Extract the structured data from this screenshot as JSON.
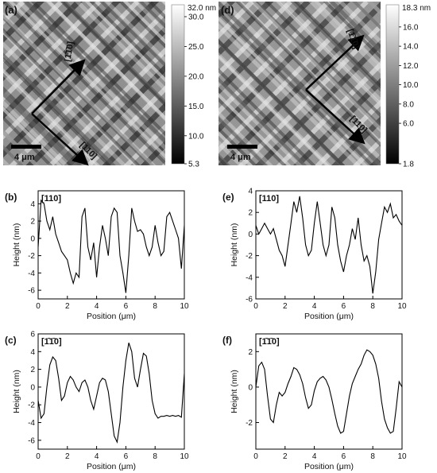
{
  "figure": {
    "panels": {
      "a": {
        "label": "(a)",
        "dir_top": "[1̄1̄0]",
        "dir_bottom": "[110]",
        "scalebar": "4 μm"
      },
      "d": {
        "label": "(d)",
        "dir_top": "[1̄1̄0]",
        "dir_bottom": "[110]",
        "scalebar": "4 μm"
      }
    },
    "colorbars": [
      {
        "max_label": "32.0 nm",
        "ticks": [
          "30.0",
          "25.0",
          "20.0",
          "15.0",
          "10.0",
          "5.3"
        ],
        "tick_values": [
          30.0,
          25.0,
          20.0,
          15.0,
          10.0,
          5.3
        ],
        "min": 5.3,
        "max": 32.0
      },
      {
        "max_label": "18.3 nm",
        "ticks": [
          "16.0",
          "14.0",
          "12.0",
          "10.0",
          "8.0",
          "6.0",
          "1.8"
        ],
        "tick_values": [
          16.0,
          14.0,
          12.0,
          10.0,
          8.0,
          6.0,
          1.8
        ],
        "min": 1.8,
        "max": 18.3
      }
    ]
  },
  "chart_data": [
    {
      "id": "b",
      "type": "line",
      "panel_label": "(b)",
      "direction": "[110]",
      "xlabel": "Position (μm)",
      "ylabel": "Height (nm)",
      "xlim": [
        0,
        10
      ],
      "ylim": [
        -7,
        5.5
      ],
      "xticks": [
        0,
        2,
        4,
        6,
        8,
        10
      ],
      "yticks": [
        -6,
        -4,
        -2,
        0,
        2,
        4
      ],
      "x": [
        0,
        0.2,
        0.4,
        0.6,
        0.8,
        1.0,
        1.2,
        1.4,
        1.6,
        1.8,
        2.0,
        2.2,
        2.4,
        2.6,
        2.8,
        3.0,
        3.2,
        3.4,
        3.6,
        3.8,
        4.0,
        4.2,
        4.4,
        4.6,
        4.8,
        5.0,
        5.2,
        5.4,
        5.6,
        5.8,
        6.0,
        6.2,
        6.4,
        6.6,
        6.8,
        7.0,
        7.2,
        7.4,
        7.6,
        7.8,
        8.0,
        8.2,
        8.4,
        8.6,
        8.8,
        9.0,
        9.2,
        9.4,
        9.6,
        9.8,
        10.0
      ],
      "y": [
        -1.0,
        4.4,
        4.0,
        2.0,
        1.0,
        2.5,
        0.5,
        -0.5,
        -1.5,
        -2.0,
        -2.5,
        -4.0,
        -5.2,
        -4.0,
        -4.5,
        2.5,
        3.5,
        -1.0,
        -2.5,
        -0.5,
        -4.5,
        -1.0,
        1.5,
        0.0,
        -2.0,
        2.5,
        3.5,
        3.0,
        -2.0,
        -4.0,
        -6.3,
        -2.0,
        3.5,
        2.0,
        0.8,
        1.0,
        0.5,
        -1.0,
        -2.0,
        -1.0,
        1.5,
        -0.5,
        -2.0,
        -1.5,
        2.5,
        3.0,
        2.0,
        1.0,
        0.0,
        -3.5,
        1.5
      ]
    },
    {
      "id": "c",
      "type": "line",
      "panel_label": "(c)",
      "direction": "[1̄1̄0]",
      "xlabel": "Position (μm)",
      "ylabel": "Height (nm)",
      "xlim": [
        0,
        10
      ],
      "ylim": [
        -7,
        6
      ],
      "xticks": [
        0,
        2,
        4,
        6,
        8,
        10
      ],
      "yticks": [
        -6,
        -4,
        -2,
        0,
        2,
        4,
        6
      ],
      "x": [
        0,
        0.2,
        0.4,
        0.6,
        0.8,
        1.0,
        1.2,
        1.4,
        1.6,
        1.8,
        2.0,
        2.2,
        2.4,
        2.6,
        2.8,
        3.0,
        3.2,
        3.4,
        3.6,
        3.8,
        4.0,
        4.2,
        4.4,
        4.6,
        4.8,
        5.0,
        5.2,
        5.4,
        5.6,
        5.8,
        6.0,
        6.2,
        6.4,
        6.6,
        6.8,
        7.0,
        7.2,
        7.4,
        7.6,
        7.8,
        8.0,
        8.2,
        8.4,
        8.6,
        8.8,
        9.0,
        9.2,
        9.4,
        9.6,
        9.8,
        10.0
      ],
      "y": [
        -1.5,
        -3.5,
        -3.0,
        0.0,
        2.5,
        3.4,
        3.0,
        1.0,
        -1.5,
        -1.0,
        0.5,
        1.2,
        0.8,
        0.0,
        -0.5,
        0.5,
        0.8,
        0.0,
        -1.5,
        -2.5,
        -1.0,
        0.5,
        1.0,
        0.8,
        -0.5,
        -3.0,
        -5.5,
        -6.2,
        -4.0,
        0.0,
        3.0,
        5.0,
        4.0,
        1.0,
        0.0,
        2.0,
        3.8,
        3.5,
        1.5,
        -1.5,
        -3.0,
        -3.5,
        -3.3,
        -3.3,
        -3.2,
        -3.3,
        -3.2,
        -3.3,
        -3.2,
        -3.4,
        1.5
      ]
    },
    {
      "id": "e",
      "type": "line",
      "panel_label": "(e)",
      "direction": "[110]",
      "xlabel": "Position (μm)",
      "ylabel": "Height (nm)",
      "xlim": [
        0,
        10
      ],
      "ylim": [
        -6,
        4
      ],
      "xticks": [
        0,
        2,
        4,
        6,
        8,
        10
      ],
      "yticks": [
        -6,
        -4,
        -2,
        0,
        2,
        4
      ],
      "x": [
        0,
        0.2,
        0.4,
        0.6,
        0.8,
        1.0,
        1.2,
        1.4,
        1.6,
        1.8,
        2.0,
        2.2,
        2.4,
        2.6,
        2.8,
        3.0,
        3.2,
        3.4,
        3.6,
        3.8,
        4.0,
        4.2,
        4.4,
        4.6,
        4.8,
        5.0,
        5.2,
        5.4,
        5.6,
        5.8,
        6.0,
        6.2,
        6.4,
        6.6,
        6.8,
        7.0,
        7.2,
        7.4,
        7.6,
        7.8,
        8.0,
        8.2,
        8.4,
        8.6,
        8.8,
        9.0,
        9.2,
        9.4,
        9.6,
        9.8,
        10.0
      ],
      "y": [
        0.8,
        0.0,
        0.5,
        1.0,
        0.5,
        0.0,
        0.5,
        -0.5,
        -1.5,
        -2.0,
        -3.0,
        -1.0,
        1.0,
        3.0,
        2.0,
        3.5,
        1.5,
        -1.0,
        -2.0,
        -1.5,
        1.0,
        3.0,
        1.0,
        -1.0,
        -2.0,
        -1.0,
        2.5,
        1.5,
        -1.0,
        -2.5,
        -3.5,
        -2.0,
        -1.0,
        0.5,
        -0.5,
        1.5,
        -1.0,
        -2.5,
        -2.0,
        -3.0,
        -5.5,
        -3.5,
        -0.5,
        1.0,
        2.5,
        2.0,
        2.8,
        1.5,
        1.8,
        1.2,
        0.8
      ]
    },
    {
      "id": "f",
      "type": "line",
      "panel_label": "(f)",
      "direction": "[1̄1̄0]",
      "xlabel": "Position (μm)",
      "ylabel": "Height (nm)",
      "xlim": [
        0,
        10
      ],
      "ylim": [
        -3.5,
        3
      ],
      "xticks": [
        0,
        2,
        4,
        6,
        8,
        10
      ],
      "yticks": [
        -2,
        0,
        2
      ],
      "x": [
        0,
        0.2,
        0.4,
        0.6,
        0.8,
        1.0,
        1.2,
        1.4,
        1.6,
        1.8,
        2.0,
        2.2,
        2.4,
        2.6,
        2.8,
        3.0,
        3.2,
        3.4,
        3.6,
        3.8,
        4.0,
        4.2,
        4.4,
        4.6,
        4.8,
        5.0,
        5.2,
        5.4,
        5.6,
        5.8,
        6.0,
        6.2,
        6.4,
        6.6,
        6.8,
        7.0,
        7.2,
        7.4,
        7.6,
        7.8,
        8.0,
        8.2,
        8.4,
        8.6,
        8.8,
        9.0,
        9.2,
        9.4,
        9.6,
        9.8,
        10.0
      ],
      "y": [
        0.0,
        1.2,
        1.4,
        1.0,
        -0.5,
        -1.8,
        -2.0,
        -1.0,
        -0.3,
        -0.5,
        -0.3,
        0.2,
        0.6,
        1.1,
        1.0,
        0.7,
        0.2,
        -0.6,
        -1.2,
        -1.0,
        -0.2,
        0.3,
        0.5,
        0.6,
        0.4,
        0.0,
        -0.7,
        -1.5,
        -2.2,
        -2.6,
        -2.5,
        -1.5,
        -0.5,
        0.2,
        0.6,
        1.0,
        1.3,
        1.8,
        2.1,
        2.0,
        1.8,
        1.3,
        0.5,
        -0.8,
        -1.8,
        -2.3,
        -2.6,
        -2.5,
        -1.2,
        0.3,
        0.0
      ]
    }
  ]
}
